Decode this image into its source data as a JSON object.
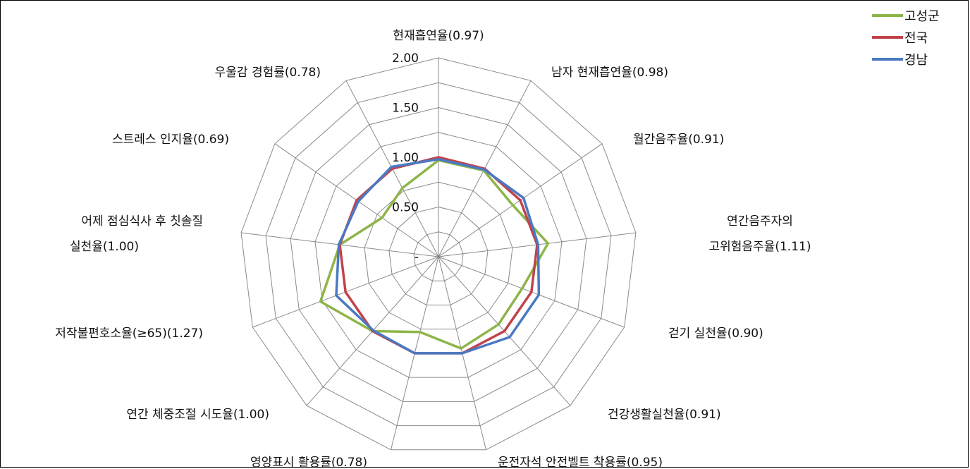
{
  "chart_data": {
    "type": "radar",
    "title": "",
    "categories": [
      [
        "현재흡연율(0.97)"
      ],
      [
        "남자 현재흡연율(0.98)"
      ],
      [
        "월간음주율(0.91)"
      ],
      [
        "연간음주자의",
        "고위험음주율(1.11)"
      ],
      [
        "걷기 실천율(0.90)"
      ],
      [
        "건강생활실천율(0.91)"
      ],
      [
        "운전자석 안전벨트 착용률(0.95)"
      ],
      [
        "영양표시 활용률(0.78)"
      ],
      [
        "연간 체중조절 시도율(1.00)"
      ],
      [
        "저작불편호소율(≥65)(1.27)"
      ],
      [
        "어제 점심식사 후 칫솔질",
        "실천율(1.00)"
      ],
      [
        "스트레스 인지율(0.69)"
      ],
      [
        "우울감 경험률(0.78)"
      ]
    ],
    "rlim": [
      0,
      2
    ],
    "ticks": [
      "-",
      "0.50",
      "1.00",
      "1.50",
      "2.00"
    ],
    "tick_values": [
      0,
      0.5,
      1.0,
      1.5,
      2.0
    ],
    "grid": true,
    "legend_position": "top-right",
    "series": [
      {
        "name": "고성군",
        "color": "#8db548",
        "values": [
          0.97,
          0.98,
          0.91,
          1.11,
          0.9,
          0.91,
          0.95,
          0.78,
          1.0,
          1.27,
          1.0,
          0.69,
          0.78
        ]
      },
      {
        "name": "전국",
        "color": "#c0434b",
        "values": [
          1.0,
          1.0,
          1.0,
          1.0,
          1.0,
          1.0,
          1.0,
          1.0,
          1.0,
          1.0,
          1.0,
          1.0,
          1.0
        ]
      },
      {
        "name": "경남",
        "color": "#4a79c3",
        "values": [
          0.98,
          0.99,
          1.04,
          1.01,
          1.08,
          1.08,
          1.0,
          1.0,
          0.99,
          1.1,
          1.01,
          0.98,
          1.02
        ]
      }
    ]
  }
}
